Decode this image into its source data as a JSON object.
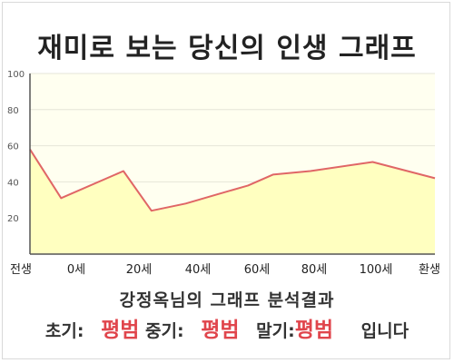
{
  "header": {
    "title": "재미로 보는 당신의 인생 그래프"
  },
  "summary": {
    "text": "강정옥님의 그래프 분석결과"
  },
  "result": {
    "early_label": "초기:",
    "early_value": "평범",
    "mid_label": "중기:",
    "mid_value": "평범",
    "late_label": "말기:",
    "late_value": "평범",
    "suffix": "입니다"
  },
  "colors": {
    "line": "#e06666",
    "fill": "#ffffc0",
    "plot_background": "#fffff0",
    "accent": "#e0454c"
  },
  "chart_data": {
    "type": "area",
    "title": "재미로 보는 당신의 인생 그래프",
    "xlabel": "",
    "ylabel": "",
    "x_tick_labels": [
      "전생",
      "0세",
      "20세",
      "40세",
      "60세",
      "80세",
      "100세",
      "환생"
    ],
    "ylim": [
      0,
      100
    ],
    "y_ticks": [
      20,
      40,
      60,
      80,
      100
    ],
    "grid": true,
    "legend": "none",
    "points": [
      {
        "x": -10,
        "y": 58
      },
      {
        "x": 0,
        "y": 31
      },
      {
        "x": 20,
        "y": 46
      },
      {
        "x": 29,
        "y": 24
      },
      {
        "x": 40,
        "y": 28
      },
      {
        "x": 50,
        "y": 33
      },
      {
        "x": 60,
        "y": 38
      },
      {
        "x": 68,
        "y": 44
      },
      {
        "x": 80,
        "y": 46
      },
      {
        "x": 100,
        "y": 51
      },
      {
        "x": 120,
        "y": 42
      }
    ]
  }
}
